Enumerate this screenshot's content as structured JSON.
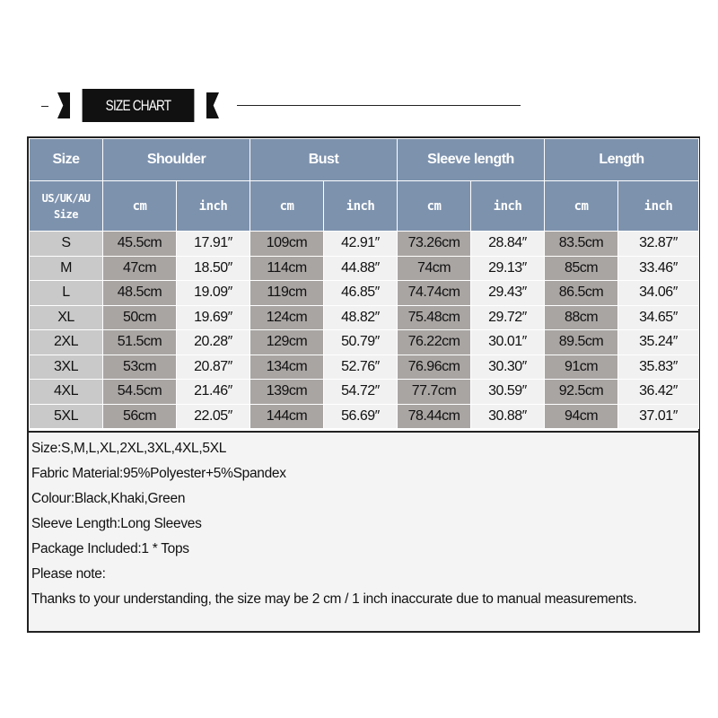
{
  "banner": {
    "title": "SIZE CHART"
  },
  "table": {
    "groups": [
      "Size",
      "Shoulder",
      "Bust",
      "Sleeve length",
      "Length"
    ],
    "size_subheader": [
      "US/UK/AU",
      "Size"
    ],
    "units": [
      "cm",
      "inch"
    ],
    "rows": [
      [
        "S",
        "45.5cm",
        "17.91″",
        "109cm",
        "42.91″",
        "73.26cm",
        "28.84″",
        "83.5cm",
        "32.87″"
      ],
      [
        "M",
        "47cm",
        "18.50″",
        "114cm",
        "44.88″",
        "74cm",
        "29.13″",
        "85cm",
        "33.46″"
      ],
      [
        "L",
        "48.5cm",
        "19.09″",
        "119cm",
        "46.85″",
        "74.74cm",
        "29.43″",
        "86.5cm",
        "34.06″"
      ],
      [
        "XL",
        "50cm",
        "19.69″",
        "124cm",
        "48.82″",
        "75.48cm",
        "29.72″",
        "88cm",
        "34.65″"
      ],
      [
        "2XL",
        "51.5cm",
        "20.28″",
        "129cm",
        "50.79″",
        "76.22cm",
        "30.01″",
        "89.5cm",
        "35.24″"
      ],
      [
        "3XL",
        "53cm",
        "20.87″",
        "134cm",
        "52.76″",
        "76.96cm",
        "30.30″",
        "91cm",
        "35.83″"
      ],
      [
        "4XL",
        "54.5cm",
        "21.46″",
        "139cm",
        "54.72″",
        "77.7cm",
        "30.59″",
        "92.5cm",
        "36.42″"
      ],
      [
        "5XL",
        "56cm",
        "22.05″",
        "144cm",
        "56.69″",
        "78.44cm",
        "30.88″",
        "94cm",
        "37.01″"
      ]
    ]
  },
  "notes": [
    "Size:S,M,L,XL,2XL,3XL,4XL,5XL",
    "Fabric Material:95%Polyester+5%Spandex",
    "Colour:Black,Khaki,Green",
    "Sleeve Length:Long Sleeves",
    "Package Included:1 * Tops",
    "Please note:",
    "Thanks to your understanding, the size may be 2 cm / 1 inch inaccurate due to manual measurements."
  ],
  "colors": {
    "header": "#7d92ad",
    "cm_cell": "#a9a5a3",
    "inch_cell": "#f1f1f1",
    "size_cell": "#c9c9c9"
  }
}
